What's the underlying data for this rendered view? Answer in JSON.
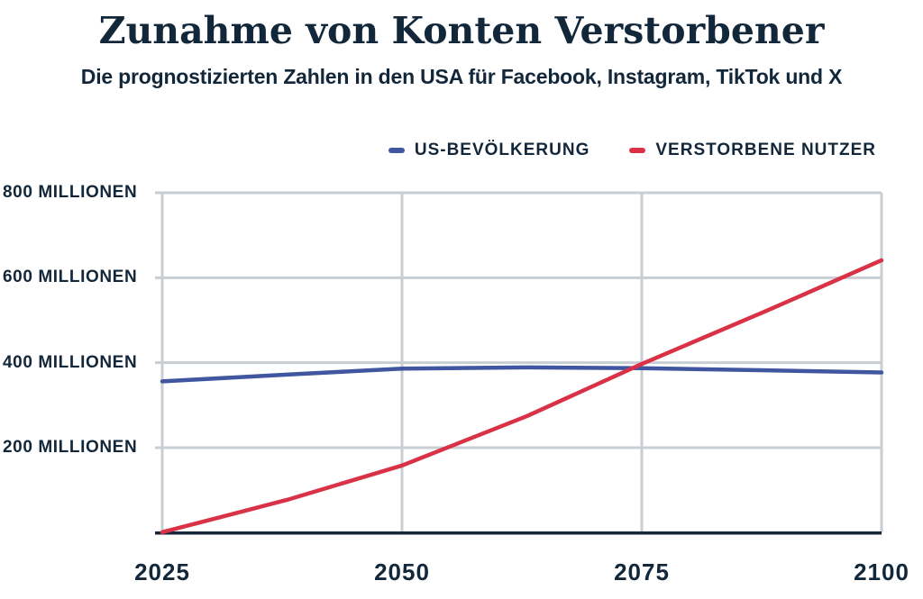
{
  "header": {
    "title": "Zunahme von Konten Verstorbener",
    "subtitle": "Die prognostizierten Zahlen in den USA für Facebook, Instagram, TikTok und X"
  },
  "legend": [
    {
      "name": "us-population",
      "label": "US-BEVÖLKERUNG",
      "color": "#4156a0"
    },
    {
      "name": "deceased-users",
      "label": "VERSTORBENE NUTZER",
      "color": "#d93247"
    }
  ],
  "colors": {
    "text_navy": "#13273b",
    "axis_navy": "#15263a",
    "gridline_gray": "#c9ced3",
    "us_population_line": "#4156a0",
    "deceased_users_line": "#d93247",
    "background": "#ffffff"
  },
  "axis": {
    "y_ticks": [
      {
        "value": 800,
        "label": "800 MILLIONEN"
      },
      {
        "value": 600,
        "label": "600 MILLIONEN"
      },
      {
        "value": 400,
        "label": "400 MILLIONEN"
      },
      {
        "value": 200,
        "label": "200 MILLIONEN"
      }
    ],
    "x_ticks": [
      {
        "value": 2025,
        "label": "2025"
      },
      {
        "value": 2050,
        "label": "2050"
      },
      {
        "value": 2075,
        "label": "2075"
      },
      {
        "value": 2100,
        "label": "2100"
      }
    ]
  },
  "chart_data": {
    "type": "line",
    "title": "Zunahme von Konten Verstorbener",
    "subtitle": "Die prognostizierten Zahlen in den USA für Facebook, Instagram, TikTok und X",
    "x": [
      2025,
      2038,
      2050,
      2063,
      2075,
      2088,
      2100
    ],
    "series": [
      {
        "name": "US-Bevölkerung",
        "color": "#4156a0",
        "values": [
          356,
          372,
          386,
          389,
          387,
          382,
          377
        ]
      },
      {
        "name": "Verstorbene Nutzer",
        "color": "#d93247",
        "values": [
          1,
          77,
          158,
          274,
          397,
          522,
          641
        ]
      }
    ],
    "xlabel": "",
    "ylabel": "Millionen",
    "xlim": [
      2025,
      2100
    ],
    "ylim": [
      0,
      800
    ],
    "y_tick_values": [
      200,
      400,
      600,
      800
    ],
    "x_tick_values": [
      2025,
      2050,
      2075,
      2100
    ],
    "grid": true,
    "legend_position": "top-right",
    "units": "Millionen Nutzer/Einwohner"
  }
}
